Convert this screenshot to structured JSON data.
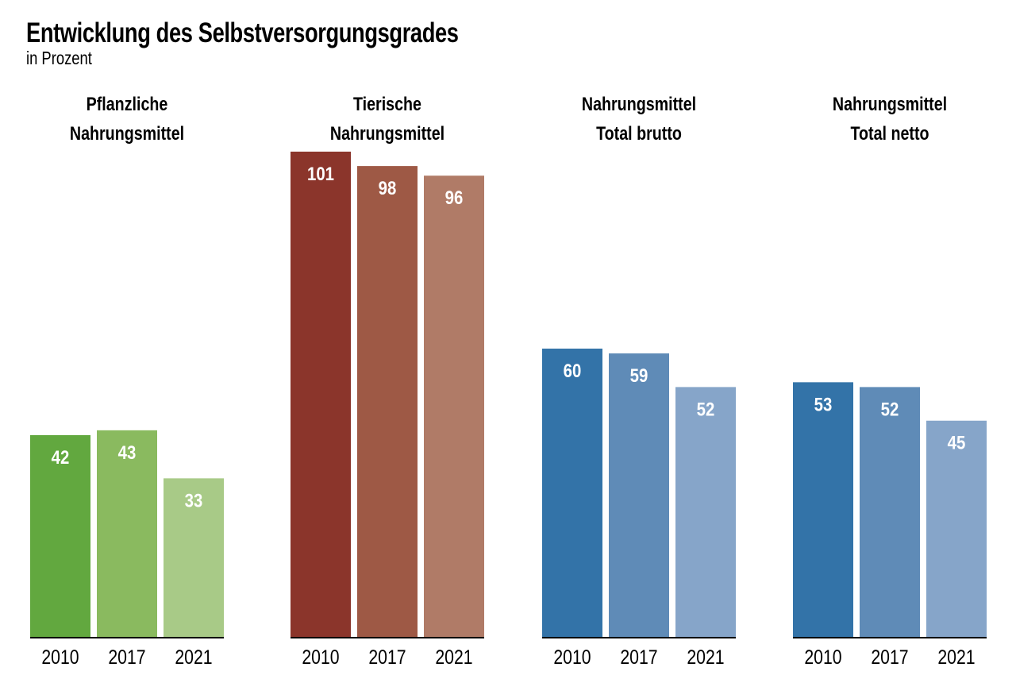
{
  "chart_data": {
    "type": "bar",
    "title": "Entwicklung des Selbstversorgungsgrades",
    "subtitle": "in Prozent",
    "ylim": [
      0,
      101
    ],
    "grid": false,
    "categories": [
      "2010",
      "2017",
      "2021"
    ],
    "panels": [
      {
        "title_lines": [
          "Pflanzliche",
          "Nahrungsmittel"
        ],
        "values": [
          42,
          43,
          33
        ],
        "colors": [
          "#62a83f",
          "#8aba5f",
          "#a8ca87"
        ]
      },
      {
        "title_lines": [
          "Tierische",
          "Nahrungsmittel"
        ],
        "values": [
          101,
          98,
          96
        ],
        "colors": [
          "#8b352b",
          "#9e5945",
          "#b07b67"
        ]
      },
      {
        "title_lines": [
          "Nahrungsmittel",
          "Total brutto"
        ],
        "values": [
          60,
          59,
          52
        ],
        "colors": [
          "#3373a8",
          "#5f8bb7",
          "#86a5c9"
        ]
      },
      {
        "title_lines": [
          "Nahrungsmittel",
          "Total netto"
        ],
        "values": [
          53,
          52,
          45
        ],
        "colors": [
          "#3373a8",
          "#5f8bb7",
          "#86a5c9"
        ]
      }
    ]
  }
}
